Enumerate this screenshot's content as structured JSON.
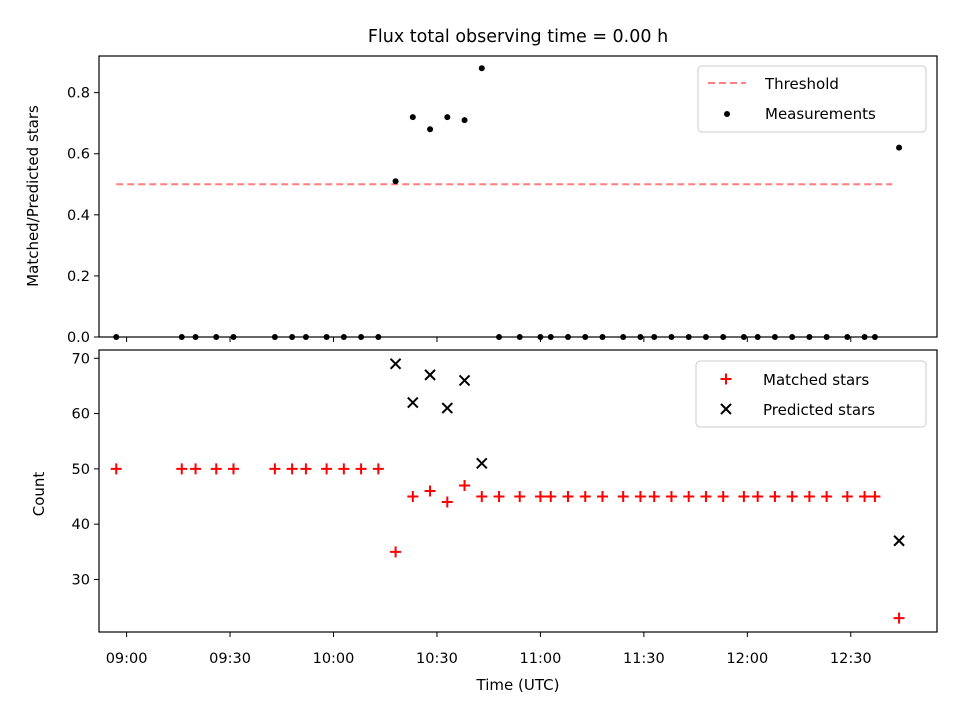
{
  "chart_data": [
    {
      "type": "scatter",
      "title": "Flux total observing time = 0.00 h",
      "xlabel": "",
      "ylabel": "Matched/Predicted stars",
      "xlim": [
        "08:52",
        "12:55"
      ],
      "ylim": [
        0,
        0.92
      ],
      "yticks": [
        0.0,
        0.2,
        0.4,
        0.6,
        0.8
      ],
      "ytick_labels": [
        "0.0",
        "0.2",
        "0.4",
        "0.6",
        "0.8"
      ],
      "legend_position": "top-right",
      "grid": false,
      "series": [
        {
          "name": "Threshold",
          "kind": "dashed-line",
          "color": "#ff7f7f",
          "x": [
            "08:57",
            "12:42"
          ],
          "y": [
            0.5,
            0.5
          ]
        },
        {
          "name": "Measurements",
          "kind": "dots",
          "color": "#000000",
          "x": [
            "08:57",
            "09:16",
            "09:20",
            "09:26",
            "09:31",
            "09:43",
            "09:48",
            "09:52",
            "09:58",
            "10:03",
            "10:08",
            "10:13",
            "10:18",
            "10:23",
            "10:28",
            "10:33",
            "10:38",
            "10:43",
            "10:48",
            "10:54",
            "11:00",
            "11:03",
            "11:08",
            "11:13",
            "11:18",
            "11:24",
            "11:29",
            "11:33",
            "11:38",
            "11:43",
            "11:48",
            "11:53",
            "11:59",
            "12:03",
            "12:08",
            "12:13",
            "12:18",
            "12:23",
            "12:29",
            "12:34",
            "12:37",
            "12:44"
          ],
          "y": [
            0,
            0,
            0,
            0,
            0,
            0,
            0,
            0,
            0,
            0,
            0,
            0,
            0.51,
            0.72,
            0.68,
            0.72,
            0.71,
            0.88,
            0,
            0,
            0,
            0,
            0,
            0,
            0,
            0,
            0,
            0,
            0,
            0,
            0,
            0,
            0,
            0,
            0,
            0,
            0,
            0,
            0,
            0,
            0,
            0.62
          ]
        }
      ]
    },
    {
      "type": "scatter",
      "title": "",
      "xlabel": "Time (UTC)",
      "ylabel": "Count",
      "xlim": [
        "08:52",
        "12:55"
      ],
      "ylim": [
        20.5,
        71.5
      ],
      "yticks": [
        30,
        40,
        50,
        60,
        70
      ],
      "ytick_labels": [
        "30",
        "40",
        "50",
        "60",
        "70"
      ],
      "xticks": [
        "09:00",
        "09:30",
        "10:00",
        "10:30",
        "11:00",
        "11:30",
        "12:00",
        "12:30"
      ],
      "legend_position": "top-right",
      "grid": false,
      "series": [
        {
          "name": "Matched stars",
          "marker": "plus",
          "color": "#ff0000",
          "x": [
            "08:57",
            "09:16",
            "09:20",
            "09:26",
            "09:31",
            "09:43",
            "09:48",
            "09:52",
            "09:58",
            "10:03",
            "10:08",
            "10:13",
            "10:18",
            "10:23",
            "10:28",
            "10:33",
            "10:38",
            "10:43",
            "10:48",
            "10:54",
            "11:00",
            "11:03",
            "11:08",
            "11:13",
            "11:18",
            "11:24",
            "11:29",
            "11:33",
            "11:38",
            "11:43",
            "11:48",
            "11:53",
            "11:59",
            "12:03",
            "12:08",
            "12:13",
            "12:18",
            "12:23",
            "12:29",
            "12:34",
            "12:37",
            "12:44"
          ],
          "y": [
            50,
            50,
            50,
            50,
            50,
            50,
            50,
            50,
            50,
            50,
            50,
            50,
            35,
            45,
            46,
            44,
            47,
            45,
            45,
            45,
            45,
            45,
            45,
            45,
            45,
            45,
            45,
            45,
            45,
            45,
            45,
            45,
            45,
            45,
            45,
            45,
            45,
            45,
            45,
            45,
            45,
            23
          ]
        },
        {
          "name": "Predicted stars",
          "marker": "x",
          "color": "#000000",
          "x": [
            "10:18",
            "10:23",
            "10:28",
            "10:33",
            "10:38",
            "10:43",
            "12:44"
          ],
          "y": [
            69,
            62,
            67,
            61,
            66,
            51,
            37
          ]
        }
      ]
    }
  ]
}
